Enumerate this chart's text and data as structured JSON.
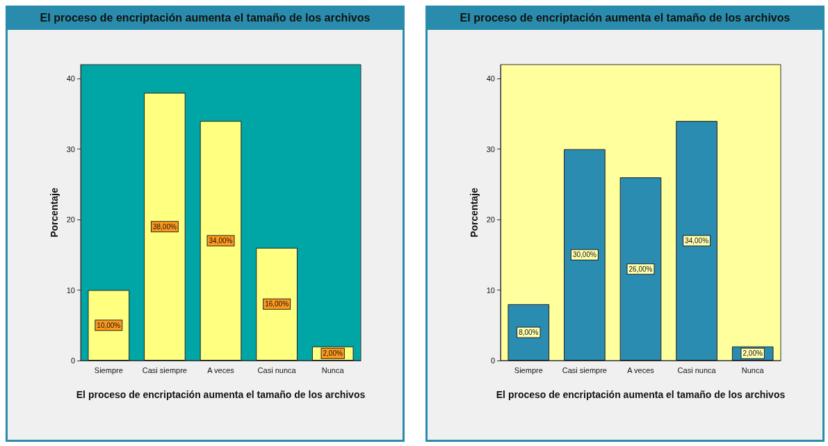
{
  "chart_data": [
    {
      "type": "bar",
      "title": "El proceso de encriptación aumenta el tamaño de los archivos",
      "xlabel": "El proceso de encriptación aumenta el tamaño de los archivos",
      "ylabel": "Porcentaje",
      "categories": [
        "Siempre",
        "Casi siempre",
        "A veces",
        "Casi nunca",
        "Nunca"
      ],
      "values": [
        10,
        38,
        34,
        16,
        2
      ],
      "value_labels": [
        "10,00%",
        "38,00%",
        "34,00%",
        "16,00%",
        "2,00%"
      ],
      "color": "#ffff80",
      "ylim": [
        0,
        42
      ],
      "yticks": [
        0,
        10,
        20,
        30,
        40
      ]
    },
    {
      "type": "bar",
      "title": "El proceso de encriptación aumenta el tamaño de los archivos",
      "xlabel": "El proceso de encriptación aumenta el tamaño de los archivos",
      "ylabel": "Porcentaje",
      "categories": [
        "Siempre",
        "Casi siempre",
        "A veces",
        "Casi nunca",
        "Nunca"
      ],
      "values": [
        8,
        30,
        26,
        34,
        2
      ],
      "value_labels": [
        "8,00%",
        "30,00%",
        "26,00%",
        "34,00%",
        "2,00%"
      ],
      "color": "#2a8cb0",
      "ylim": [
        0,
        42
      ],
      "yticks": [
        0,
        10,
        20,
        30,
        40
      ]
    }
  ]
}
